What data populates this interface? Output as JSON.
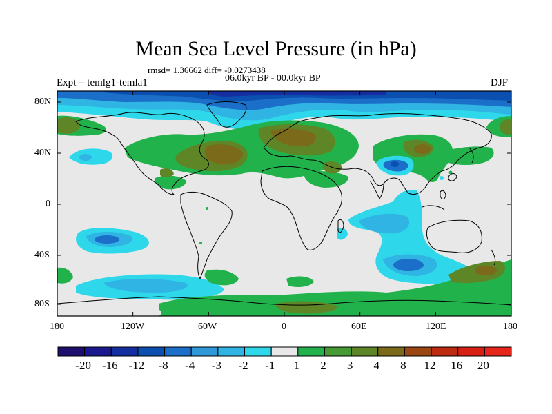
{
  "title": "Mean Sea Level Pressure (in hPa)",
  "stats_line": "rmsd= 1.36662  diff= -0.0273438",
  "period_line": "06.0kyr BP - 00.0kyr BP",
  "expt_label": "Expt = temlg1-temla1",
  "season_label": "DJF",
  "lat_ticks": [
    "80N",
    "40N",
    "0",
    "40S",
    "80S"
  ],
  "lon_ticks": [
    "180",
    "120W",
    "60W",
    "0",
    "60E",
    "120E",
    "180"
  ],
  "colorbar": {
    "labels": [
      "-20",
      "-16",
      "-12",
      "-8",
      "-4",
      "-3",
      "-2",
      "-1",
      "1",
      "2",
      "3",
      "4",
      "8",
      "12",
      "16",
      "20"
    ],
    "colors": [
      "#1e0f6e",
      "#1a1a8e",
      "#162fa0",
      "#0b4fb0",
      "#1b6fc8",
      "#2f98d8",
      "#2fb4e3",
      "#2ed8ea",
      "#e8e8e8",
      "#22b24c",
      "#459a33",
      "#5e8526",
      "#7a6a1a",
      "#9a4714",
      "#bd2a10",
      "#d81f14",
      "#e6261a"
    ]
  },
  "colors": {
    "background": "#e8e8e8",
    "strong_negative": "#0b4fb0",
    "negative": "#2fb4e3",
    "positive": "#22b24c",
    "strong_positive": "#7a6a1a"
  }
}
